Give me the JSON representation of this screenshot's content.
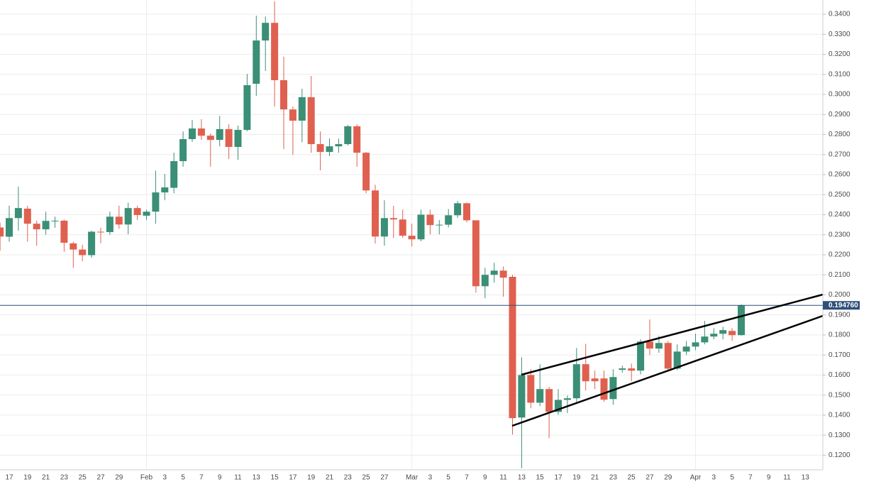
{
  "chart_data": {
    "type": "candlestick",
    "categories": [
      null,
      "17",
      null,
      "19",
      null,
      "21",
      null,
      "23",
      null,
      "25",
      null,
      "27",
      null,
      "29",
      null,
      null,
      "Feb",
      null,
      "3",
      null,
      "5",
      null,
      "7",
      null,
      "9",
      null,
      "11",
      null,
      "13",
      null,
      "15",
      null,
      "17",
      null,
      "19",
      null,
      "21",
      null,
      "23",
      null,
      "25",
      null,
      "27",
      null,
      null,
      "Mar",
      null,
      "3",
      null,
      "5",
      null,
      "7",
      null,
      "9",
      null,
      "11",
      null,
      "13",
      null,
      "15",
      null,
      "17",
      null,
      "19",
      null,
      "21",
      null,
      "23",
      null,
      "25",
      null,
      "27",
      null,
      "29",
      null,
      null,
      "Apr",
      null,
      "3",
      null,
      "5",
      null,
      "7",
      null,
      "9",
      null,
      "11",
      null,
      "13",
      null
    ],
    "open": [
      0.2336,
      0.229,
      0.2383,
      0.243,
      0.2355,
      0.2327,
      0.2369,
      0.237,
      0.2257,
      0.2226,
      0.2198,
      0.2315,
      0.2313,
      0.239,
      0.2351,
      0.2433,
      0.2395,
      0.2415,
      0.2511,
      0.2534,
      0.2667,
      0.2777,
      0.283,
      0.2794,
      0.2773,
      0.2827,
      0.2738,
      0.2823,
      0.3053,
      0.3269,
      0.3357,
      0.3071,
      0.2925,
      0.2869,
      0.2986,
      0.2752,
      0.2713,
      0.2741,
      0.2752,
      0.2841,
      0.2709,
      0.2521,
      0.2291,
      0.2383,
      0.2376,
      0.2295,
      0.2277,
      0.24,
      0.2348,
      0.235,
      0.2397,
      0.2457,
      0.2372,
      0.2043,
      0.21,
      0.2121,
      0.209,
      0.1388,
      0.16,
      0.1462,
      0.153,
      0.1416,
      0.1476,
      0.1484,
      0.1654,
      0.1583,
      0.1583,
      0.148,
      0.1626,
      0.1633,
      0.1622,
      0.1767,
      0.1732,
      0.176,
      0.1632,
      0.1717,
      0.1742,
      0.1763,
      0.1792,
      0.1806,
      0.182,
      0.1799,
      null,
      null,
      null,
      null,
      null,
      null,
      null,
      null
    ],
    "high": [
      0.236,
      0.2445,
      0.254,
      0.2445,
      0.237,
      0.2415,
      0.239,
      0.2375,
      0.2265,
      0.225,
      0.232,
      0.2335,
      0.2415,
      0.2445,
      0.246,
      0.2445,
      0.2425,
      0.262,
      0.2603,
      0.2709,
      0.2815,
      0.2872,
      0.2876,
      0.2805,
      0.2893,
      0.2851,
      0.2844,
      0.3102,
      0.3393,
      0.3389,
      0.3464,
      0.3188,
      0.294,
      0.3028,
      0.3092,
      0.2815,
      0.278,
      0.278,
      0.2848,
      0.2851,
      0.2713,
      0.2549,
      0.2472,
      0.2444,
      0.2426,
      0.2355,
      0.2425,
      0.2425,
      0.2373,
      0.2428,
      0.2468,
      0.2461,
      0.2372,
      0.2135,
      0.216,
      0.2142,
      0.21,
      0.1689,
      0.1629,
      0.1654,
      0.1541,
      0.153,
      0.1498,
      0.1735,
      0.1756,
      0.1622,
      0.1622,
      0.1629,
      0.1647,
      0.1657,
      0.1778,
      0.1877,
      0.1795,
      0.177,
      0.1753,
      0.177,
      0.1806,
      0.187,
      0.1834,
      0.1841,
      0.1834,
      0.1952,
      null,
      null,
      null,
      null,
      null,
      null,
      null,
      null
    ],
    "low": [
      0.222,
      0.2265,
      0.232,
      0.2265,
      0.2245,
      0.23,
      0.2335,
      0.2215,
      0.2135,
      0.2168,
      0.2185,
      0.2258,
      0.23,
      0.233,
      0.2302,
      0.2373,
      0.2373,
      0.2355,
      0.2472,
      0.2507,
      0.2639,
      0.2763,
      0.2773,
      0.2639,
      0.2741,
      0.2677,
      0.2674,
      0.2816,
      0.2993,
      0.3117,
      0.294,
      0.2727,
      0.2698,
      0.2762,
      0.2709,
      0.2621,
      0.2692,
      0.2709,
      0.2745,
      0.2639,
      0.2507,
      0.2256,
      0.2245,
      0.2284,
      0.2284,
      0.2242,
      0.2267,
      0.2302,
      0.2302,
      0.2337,
      0.2384,
      0.2362,
      0.2011,
      0.1983,
      0.2061,
      0.1991,
      0.1303,
      0.1135,
      0.1434,
      0.1445,
      0.1285,
      0.1402,
      0.141,
      0.1466,
      0.1523,
      0.153,
      0.1466,
      0.1452,
      0.1612,
      0.1569,
      0.1604,
      0.17,
      0.1711,
      0.1625,
      0.1625,
      0.17,
      0.1724,
      0.1753,
      0.1778,
      0.1778,
      0.1771,
      0.1797,
      null,
      null,
      null,
      null,
      null,
      null,
      null,
      null
    ],
    "close": [
      0.2291,
      0.2383,
      0.2433,
      0.2355,
      0.2327,
      0.2369,
      0.237,
      0.226,
      0.2226,
      0.2198,
      0.2315,
      0.2313,
      0.239,
      0.2351,
      0.2433,
      0.2398,
      0.2415,
      0.2511,
      0.2536,
      0.2667,
      0.2777,
      0.283,
      0.2794,
      0.2773,
      0.2827,
      0.2738,
      0.2823,
      0.3046,
      0.3269,
      0.3357,
      0.3071,
      0.2925,
      0.2869,
      0.2986,
      0.2752,
      0.2713,
      0.2741,
      0.2752,
      0.2841,
      0.2709,
      0.2521,
      0.2291,
      0.2383,
      0.2376,
      0.2295,
      0.2277,
      0.24,
      0.2348,
      0.235,
      0.2397,
      0.2457,
      0.2372,
      0.2043,
      0.21,
      0.2121,
      0.2086,
      0.1385,
      0.16,
      0.1462,
      0.153,
      0.1416,
      0.1476,
      0.1484,
      0.1654,
      0.1569,
      0.1569,
      0.1477,
      0.159,
      0.1633,
      0.1622,
      0.1767,
      0.1732,
      0.176,
      0.1632,
      0.1717,
      0.1742,
      0.1763,
      0.1792,
      0.1806,
      0.1824,
      0.1799,
      0.1948,
      null,
      null,
      null,
      null,
      null,
      null,
      null,
      null
    ],
    "up_color": "#3a8f76",
    "down_color": "#e0604f",
    "ylim": [
      0.1127,
      0.3471
    ],
    "yticks": [
      {
        "value": 0.12,
        "label": "0.1200"
      },
      {
        "value": 0.13,
        "label": "0.1300"
      },
      {
        "value": 0.14,
        "label": "0.1400"
      },
      {
        "value": 0.15,
        "label": "0.1500"
      },
      {
        "value": 0.16,
        "label": "0.1600"
      },
      {
        "value": 0.17,
        "label": "0.1700"
      },
      {
        "value": 0.18,
        "label": "0.1800"
      },
      {
        "value": 0.19,
        "label": "0.1900"
      },
      {
        "value": 0.2,
        "label": "0.2000"
      },
      {
        "value": 0.21,
        "label": "0.2100"
      },
      {
        "value": 0.22,
        "label": "0.2200"
      },
      {
        "value": 0.23,
        "label": "0.2300"
      },
      {
        "value": 0.24,
        "label": "0.2400"
      },
      {
        "value": 0.25,
        "label": "0.2500"
      },
      {
        "value": 0.26,
        "label": "0.2600"
      },
      {
        "value": 0.27,
        "label": "0.2700"
      },
      {
        "value": 0.28,
        "label": "0.2800"
      },
      {
        "value": 0.29,
        "label": "0.2900"
      },
      {
        "value": 0.3,
        "label": "0.3000"
      },
      {
        "value": 0.31,
        "label": "0.3100"
      },
      {
        "value": 0.32,
        "label": "0.3200"
      },
      {
        "value": 0.33,
        "label": "0.3300"
      },
      {
        "value": 0.34,
        "label": "0.3400"
      }
    ],
    "grid": true,
    "last_price": {
      "value": 0.19476,
      "label": "0.194760"
    },
    "last_price_color": "#2f4f7a"
  }
}
